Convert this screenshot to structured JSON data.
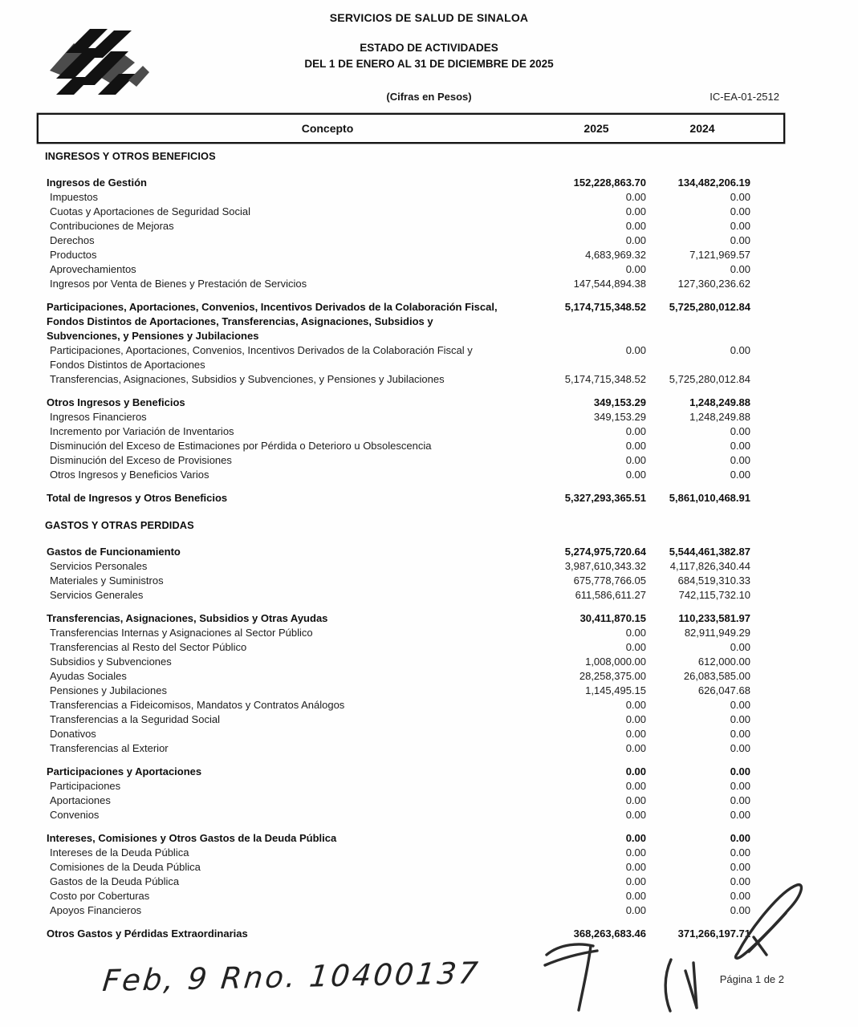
{
  "header": {
    "org": "SERVICIOS DE SALUD DE SINALOA",
    "title": "ESTADO DE ACTIVIDADES",
    "period": "DEL 1 DE ENERO AL 31 DE DICIEMBRE DE 2025",
    "units": "(Cifras en Pesos)",
    "doc_code": "IC-EA-01-2512",
    "logo": "servicios-de-salud-de-sinaloa-emblem"
  },
  "table": {
    "columns": {
      "concepto": "Concepto",
      "y2025": "2025",
      "y2024": "2024"
    },
    "sections": [
      {
        "title": "INGRESOS Y OTROS BENEFICIOS",
        "groups": [
          {
            "rows": [
              {
                "label": "Ingresos de Gestión",
                "v2025": "152,228,863.70",
                "v2024": "134,482,206.19",
                "bold": true
              },
              {
                "label": "Impuestos",
                "v2025": "0.00",
                "v2024": "0.00"
              },
              {
                "label": "Cuotas y Aportaciones de Seguridad Social",
                "v2025": "0.00",
                "v2024": "0.00"
              },
              {
                "label": "Contribuciones de Mejoras",
                "v2025": "0.00",
                "v2024": "0.00"
              },
              {
                "label": "Derechos",
                "v2025": "0.00",
                "v2024": "0.00"
              },
              {
                "label": "Productos",
                "v2025": "4,683,969.32",
                "v2024": "7,121,969.57"
              },
              {
                "label": "Aprovechamientos",
                "v2025": "0.00",
                "v2024": "0.00"
              },
              {
                "label": "Ingresos por Venta de Bienes y Prestación de Servicios",
                "v2025": "147,544,894.38",
                "v2024": "127,360,236.62"
              }
            ]
          },
          {
            "rows": [
              {
                "label": "Participaciones, Aportaciones, Convenios, Incentivos Derivados de la Colaboración Fiscal, Fondos Distintos de Aportaciones, Transferencias, Asignaciones, Subsidios y Subvenciones, y Pensiones y Jubilaciones",
                "v2025": "5,174,715,348.52",
                "v2024": "5,725,280,012.84",
                "bold": true
              },
              {
                "label": "Participaciones, Aportaciones, Convenios, Incentivos Derivados de la Colaboración Fiscal y Fondos Distintos de Aportaciones",
                "v2025": "0.00",
                "v2024": "0.00"
              },
              {
                "label": "Transferencias, Asignaciones, Subsidios y Subvenciones, y Pensiones y Jubilaciones",
                "v2025": "5,174,715,348.52",
                "v2024": "5,725,280,012.84"
              }
            ]
          },
          {
            "rows": [
              {
                "label": "Otros Ingresos y Beneficios",
                "v2025": "349,153.29",
                "v2024": "1,248,249.88",
                "bold": true
              },
              {
                "label": "Ingresos Financieros",
                "v2025": "349,153.29",
                "v2024": "1,248,249.88"
              },
              {
                "label": "Incremento por Variación de Inventarios",
                "v2025": "0.00",
                "v2024": "0.00"
              },
              {
                "label": "Disminución del Exceso de Estimaciones por Pérdida o Deterioro u Obsolescencia",
                "v2025": "0.00",
                "v2024": "0.00"
              },
              {
                "label": "Disminución del Exceso de Provisiones",
                "v2025": "0.00",
                "v2024": "0.00"
              },
              {
                "label": "Otros Ingresos y Beneficios Varios",
                "v2025": "0.00",
                "v2024": "0.00"
              }
            ]
          },
          {
            "rows": [
              {
                "label": "Total de Ingresos y Otros Beneficios",
                "v2025": "5,327,293,365.51",
                "v2024": "5,861,010,468.91",
                "bold": true
              }
            ]
          }
        ]
      },
      {
        "title": "GASTOS Y OTRAS PERDIDAS",
        "groups": [
          {
            "rows": [
              {
                "label": "Gastos de Funcionamiento",
                "v2025": "5,274,975,720.64",
                "v2024": "5,544,461,382.87",
                "bold": true
              },
              {
                "label": "Servicios Personales",
                "v2025": "3,987,610,343.32",
                "v2024": "4,117,826,340.44"
              },
              {
                "label": "Materiales y Suministros",
                "v2025": "675,778,766.05",
                "v2024": "684,519,310.33"
              },
              {
                "label": "Servicios Generales",
                "v2025": "611,586,611.27",
                "v2024": "742,115,732.10"
              }
            ]
          },
          {
            "rows": [
              {
                "label": "Transferencias, Asignaciones, Subsidios y Otras Ayudas",
                "v2025": "30,411,870.15",
                "v2024": "110,233,581.97",
                "bold": true
              },
              {
                "label": "Transferencias Internas y Asignaciones al Sector Público",
                "v2025": "0.00",
                "v2024": "82,911,949.29"
              },
              {
                "label": "Transferencias al Resto del Sector Público",
                "v2025": "0.00",
                "v2024": "0.00"
              },
              {
                "label": "Subsidios y Subvenciones",
                "v2025": "1,008,000.00",
                "v2024": "612,000.00"
              },
              {
                "label": "Ayudas Sociales",
                "v2025": "28,258,375.00",
                "v2024": "26,083,585.00"
              },
              {
                "label": "Pensiones y Jubilaciones",
                "v2025": "1,145,495.15",
                "v2024": "626,047.68"
              },
              {
                "label": "Transferencias a Fideicomisos, Mandatos y Contratos Análogos",
                "v2025": "0.00",
                "v2024": "0.00"
              },
              {
                "label": "Transferencias a la Seguridad Social",
                "v2025": "0.00",
                "v2024": "0.00"
              },
              {
                "label": "Donativos",
                "v2025": "0.00",
                "v2024": "0.00"
              },
              {
                "label": "Transferencias al Exterior",
                "v2025": "0.00",
                "v2024": "0.00"
              }
            ]
          },
          {
            "rows": [
              {
                "label": "Participaciones y Aportaciones",
                "v2025": "0.00",
                "v2024": "0.00",
                "bold": true
              },
              {
                "label": "Participaciones",
                "v2025": "0.00",
                "v2024": "0.00"
              },
              {
                "label": "Aportaciones",
                "v2025": "0.00",
                "v2024": "0.00"
              },
              {
                "label": "Convenios",
                "v2025": "0.00",
                "v2024": "0.00"
              }
            ]
          },
          {
            "rows": [
              {
                "label": "Intereses, Comisiones y Otros Gastos de la Deuda Pública",
                "v2025": "0.00",
                "v2024": "0.00",
                "bold": true
              },
              {
                "label": "Intereses de la Deuda Pública",
                "v2025": "0.00",
                "v2024": "0.00"
              },
              {
                "label": "Comisiones de la Deuda Pública",
                "v2025": "0.00",
                "v2024": "0.00"
              },
              {
                "label": "Gastos de la Deuda Pública",
                "v2025": "0.00",
                "v2024": "0.00"
              },
              {
                "label": "Costo por Coberturas",
                "v2025": "0.00",
                "v2024": "0.00"
              },
              {
                "label": "Apoyos Financieros",
                "v2025": "0.00",
                "v2024": "0.00"
              }
            ]
          },
          {
            "rows": [
              {
                "label": "Otros Gastos y Pérdidas Extraordinarias",
                "v2025": "368,263,683.46",
                "v2024": "371,266,197.71",
                "bold": true
              }
            ]
          }
        ]
      }
    ]
  },
  "footer": {
    "handwritten_note": "Feb, 9  Rno. 10400137",
    "page_number": "Página 1 de 2",
    "pen_marks": [
      "seven-stroke-over-2025-total",
      "loop-scribble-over-2024-column",
      "small-check-strokes"
    ]
  }
}
